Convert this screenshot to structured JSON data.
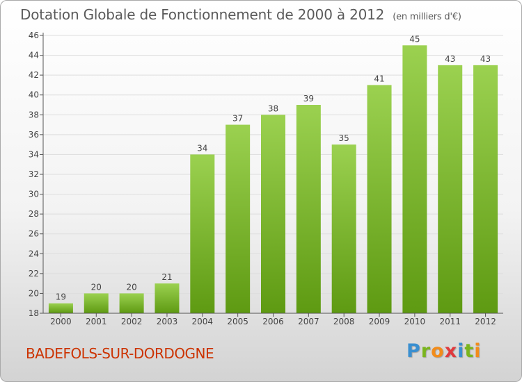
{
  "title": "Dotation Globale de Fonctionnement de 2000 à 2012",
  "unit": "(en milliers d'€)",
  "commune": "BADEFOLS-SUR-DORDOGNE",
  "logo": {
    "letters": [
      "P",
      "r",
      "o",
      "x",
      "i",
      "t",
      "i"
    ],
    "colors": [
      "#3a8fd0",
      "#7ab51d",
      "#f28c1b",
      "#e03a3e",
      "#3a8fd0",
      "#7ab51d",
      "#f28c1b"
    ]
  },
  "chart_data": {
    "type": "bar",
    "title": "Dotation Globale de Fonctionnement de 2000 à 2012",
    "xlabel": "",
    "ylabel": "",
    "categories": [
      "2000",
      "2001",
      "2002",
      "2003",
      "2004",
      "2005",
      "2006",
      "2007",
      "2008",
      "2009",
      "2010",
      "2011",
      "2012"
    ],
    "values": [
      19,
      20,
      20,
      21,
      34,
      37,
      38,
      39,
      35,
      41,
      45,
      43,
      43
    ],
    "ylim": [
      18,
      46
    ],
    "yticks": [
      18,
      20,
      22,
      24,
      26,
      28,
      30,
      32,
      34,
      36,
      38,
      40,
      42,
      44,
      46
    ],
    "grid": true,
    "colors": {
      "bar_light": "#9bd150",
      "bar_dark": "#5e9a12",
      "grid": "#dddddd",
      "axis": "#555555"
    }
  }
}
